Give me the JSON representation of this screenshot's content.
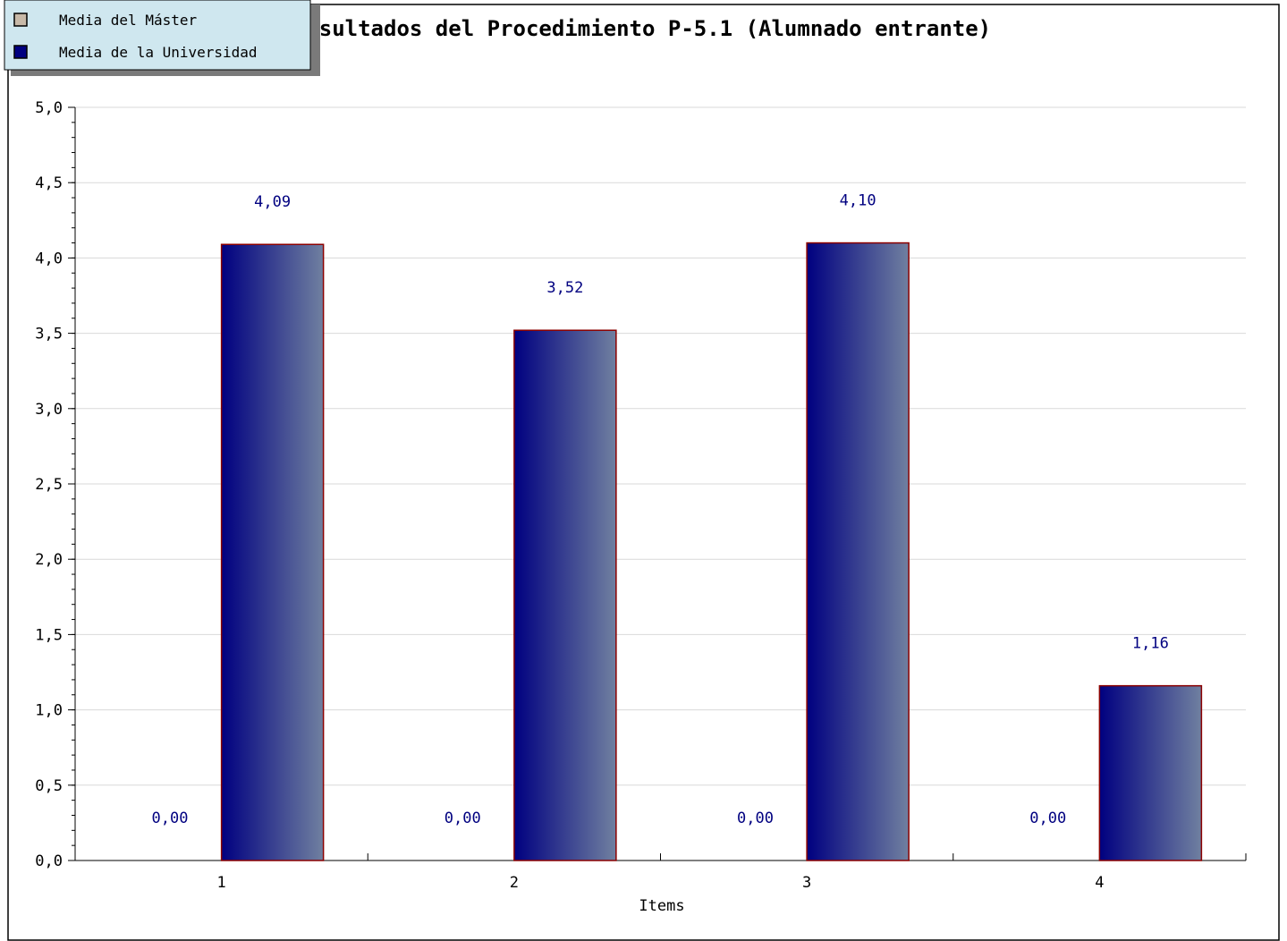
{
  "chart_data": {
    "type": "bar",
    "title": "Resultados del Procedimiento P-5.1 (Alumnado entrante)",
    "xlabel": "Items",
    "ylabel": "",
    "categories": [
      "1",
      "2",
      "3",
      "4"
    ],
    "ylim": [
      0,
      5
    ],
    "yticks": [
      "0,0",
      "0,5",
      "1,0",
      "1,5",
      "2,0",
      "2,5",
      "3,0",
      "3,5",
      "4,0",
      "4,5",
      "5,0"
    ],
    "series": [
      {
        "name": "Media del Máster",
        "values": [
          0.0,
          0.0,
          0.0,
          0.0
        ],
        "labels": [
          "0,00",
          "0,00",
          "0,00",
          "0,00"
        ],
        "color": "#c8b9a8"
      },
      {
        "name": "Media de la Universidad",
        "values": [
          4.09,
          3.52,
          4.1,
          1.16
        ],
        "labels": [
          "4,09",
          "3,52",
          "4,10",
          "1,16"
        ],
        "color": "#000080"
      }
    ],
    "grid": true,
    "legend_position": "top-left"
  },
  "colors": {
    "bar_dark": "#000080",
    "bar_light": "#7080a0",
    "bar_border": "#8b0000",
    "value_label": "#000080",
    "legend_bg": "#cfe7ef",
    "grid": "#d9d9d9"
  }
}
